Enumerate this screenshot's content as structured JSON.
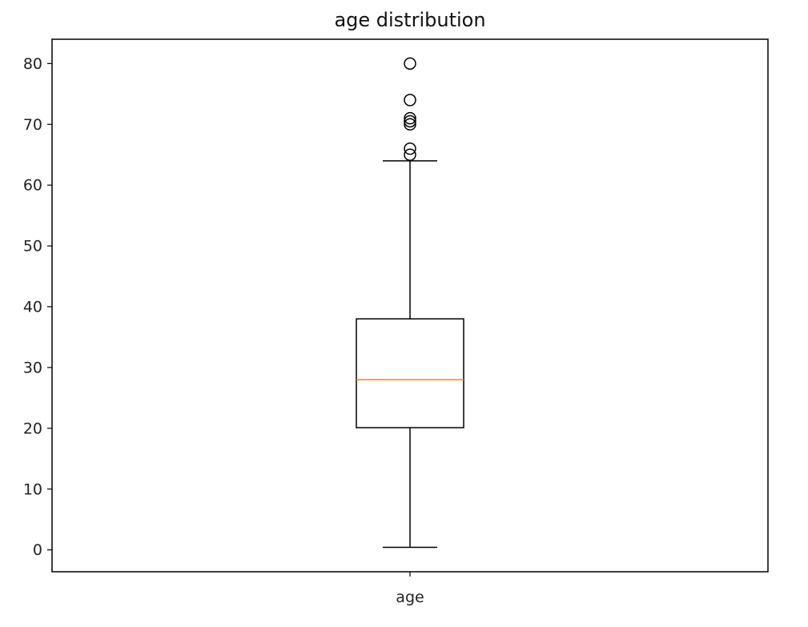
{
  "chart_data": {
    "type": "box",
    "title": "age distribution",
    "xlabel": "",
    "ylabel": "",
    "categories": [
      "age"
    ],
    "ylim": [
      -3.6,
      84
    ],
    "yticks": [
      0,
      10,
      20,
      30,
      40,
      50,
      60,
      70,
      80
    ],
    "grid": false,
    "series": [
      {
        "category": "age",
        "whisker_low": 0.42,
        "q1": 20.1,
        "median": 28.0,
        "q3": 38.0,
        "whisker_high": 64.0,
        "outliers": [
          65,
          66,
          70,
          70.5,
          71,
          74,
          80
        ]
      }
    ],
    "colors": {
      "box": "#000000",
      "median": "#ff7f0e",
      "outlier": "#000000"
    }
  }
}
